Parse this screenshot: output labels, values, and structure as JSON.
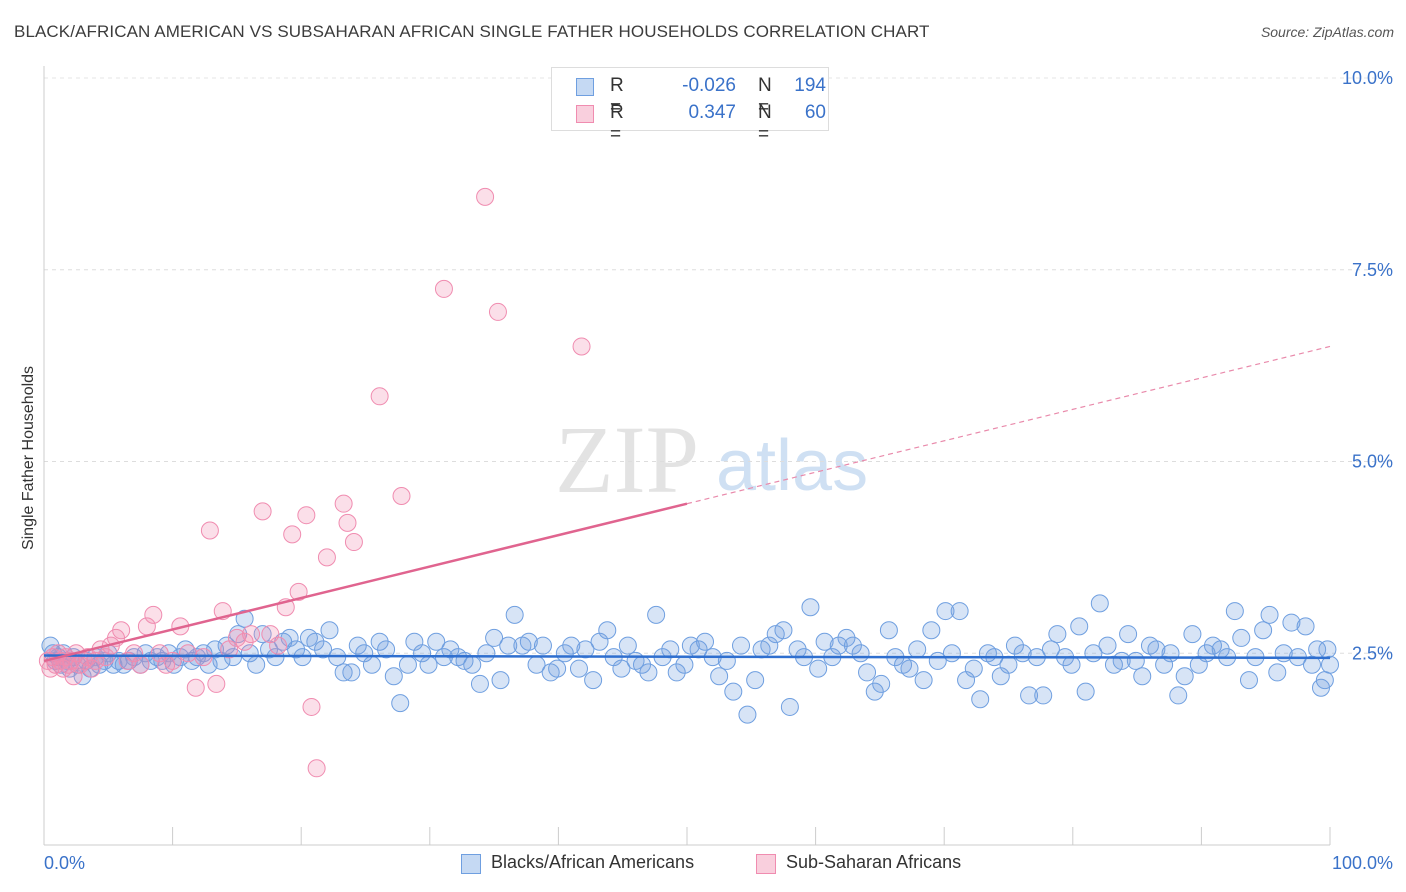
{
  "title": "BLACK/AFRICAN AMERICAN VS SUBSAHARAN AFRICAN SINGLE FATHER HOUSEHOLDS CORRELATION CHART",
  "source": "Source: ZipAtlas.com",
  "watermark": {
    "zip": "ZIP",
    "atlas": "atlas"
  },
  "legend": {
    "rows": [
      {
        "r_label": "R =",
        "r_value": "-0.026",
        "n_label": "N =",
        "n_value": "194",
        "color": "#6f9fe0"
      },
      {
        "r_label": "R =",
        "r_value": "0.347",
        "n_label": "N =",
        "n_value": "60",
        "color": "#f08cb0"
      }
    ]
  },
  "bottom_legend": [
    {
      "label": "Blacks/African Americans",
      "color": "#6f9fe0"
    },
    {
      "label": "Sub-Saharan Africans",
      "color": "#f08cb0"
    }
  ],
  "chart_data": {
    "type": "scatter",
    "title": "BLACK/AFRICAN AMERICAN VS SUBSAHARAN AFRICAN SINGLE FATHER HOUSEHOLDS CORRELATION CHART",
    "xlabel": "",
    "ylabel": "Single Father Households",
    "xlim": [
      0,
      100
    ],
    "ylim": [
      0,
      10
    ],
    "x_tick_labels": [
      "0.0%",
      "100.0%"
    ],
    "y_ticks": [
      2.5,
      5.0,
      7.5,
      10.0
    ],
    "y_tick_labels": [
      "2.5%",
      "5.0%",
      "7.5%",
      "10.0%"
    ],
    "grid": "horizontal dashed",
    "legend_position": "top-center",
    "series": [
      {
        "name": "Blacks/African Americans",
        "color": "#6f9fe0",
        "trend": {
          "x": [
            0,
            100
          ],
          "y": [
            2.47,
            2.44
          ]
        },
        "points": [
          [
            0.5,
            2.6
          ],
          [
            0.7,
            2.5
          ],
          [
            0.9,
            2.4
          ],
          [
            1.1,
            2.45
          ],
          [
            1.3,
            2.35
          ],
          [
            1.5,
            2.5
          ],
          [
            1.8,
            2.4
          ],
          [
            2.0,
            2.3
          ],
          [
            2.3,
            2.45
          ],
          [
            2.6,
            2.35
          ],
          [
            3.0,
            2.2
          ],
          [
            3.3,
            2.4
          ],
          [
            3.6,
            2.3
          ],
          [
            4.0,
            2.45
          ],
          [
            4.3,
            2.35
          ],
          [
            4.7,
            2.4
          ],
          [
            5.0,
            2.5
          ],
          [
            5.4,
            2.35
          ],
          [
            5.8,
            2.4
          ],
          [
            6.2,
            2.35
          ],
          [
            6.6,
            2.4
          ],
          [
            7.0,
            2.45
          ],
          [
            7.5,
            2.35
          ],
          [
            7.9,
            2.5
          ],
          [
            8.3,
            2.4
          ],
          [
            8.8,
            2.45
          ],
          [
            9.2,
            2.4
          ],
          [
            9.7,
            2.5
          ],
          [
            10.1,
            2.35
          ],
          [
            10.6,
            2.45
          ],
          [
            11.0,
            2.55
          ],
          [
            11.5,
            2.4
          ],
          [
            11.9,
            2.45
          ],
          [
            12.4,
            2.5
          ],
          [
            12.8,
            2.35
          ],
          [
            13.3,
            2.55
          ],
          [
            13.8,
            2.4
          ],
          [
            14.2,
            2.6
          ],
          [
            14.7,
            2.45
          ],
          [
            15.1,
            2.75
          ],
          [
            15.6,
            2.95
          ],
          [
            16.0,
            2.5
          ],
          [
            16.5,
            2.35
          ],
          [
            17.0,
            2.75
          ],
          [
            17.5,
            2.55
          ],
          [
            18.0,
            2.45
          ],
          [
            18.6,
            2.65
          ],
          [
            19.1,
            2.7
          ],
          [
            19.6,
            2.55
          ],
          [
            20.1,
            2.45
          ],
          [
            20.6,
            2.7
          ],
          [
            21.1,
            2.65
          ],
          [
            21.7,
            2.55
          ],
          [
            22.2,
            2.8
          ],
          [
            22.8,
            2.45
          ],
          [
            23.3,
            2.25
          ],
          [
            23.9,
            2.25
          ],
          [
            24.4,
            2.6
          ],
          [
            24.9,
            2.5
          ],
          [
            25.5,
            2.35
          ],
          [
            26.1,
            2.65
          ],
          [
            26.6,
            2.55
          ],
          [
            27.2,
            2.2
          ],
          [
            27.7,
            1.85
          ],
          [
            28.3,
            2.35
          ],
          [
            28.8,
            2.65
          ],
          [
            29.4,
            2.5
          ],
          [
            29.9,
            2.35
          ],
          [
            30.5,
            2.65
          ],
          [
            31.1,
            2.45
          ],
          [
            31.6,
            2.55
          ],
          [
            32.2,
            2.45
          ],
          [
            32.7,
            2.4
          ],
          [
            33.3,
            2.35
          ],
          [
            33.9,
            2.1
          ],
          [
            34.4,
            2.5
          ],
          [
            35.0,
            2.7
          ],
          [
            35.5,
            2.15
          ],
          [
            36.1,
            2.6
          ],
          [
            36.6,
            3.0
          ],
          [
            37.2,
            2.6
          ],
          [
            37.7,
            2.65
          ],
          [
            38.3,
            2.35
          ],
          [
            38.8,
            2.6
          ],
          [
            39.4,
            2.25
          ],
          [
            39.9,
            2.3
          ],
          [
            40.5,
            2.5
          ],
          [
            41.0,
            2.6
          ],
          [
            41.6,
            2.3
          ],
          [
            42.1,
            2.55
          ],
          [
            42.7,
            2.15
          ],
          [
            43.2,
            2.65
          ],
          [
            43.8,
            2.8
          ],
          [
            44.3,
            2.45
          ],
          [
            44.9,
            2.3
          ],
          [
            45.4,
            2.6
          ],
          [
            46.0,
            2.4
          ],
          [
            46.5,
            2.35
          ],
          [
            47.0,
            2.25
          ],
          [
            47.6,
            3.0
          ],
          [
            48.1,
            2.45
          ],
          [
            48.7,
            2.55
          ],
          [
            49.2,
            2.25
          ],
          [
            49.8,
            2.35
          ],
          [
            50.3,
            2.6
          ],
          [
            50.9,
            2.55
          ],
          [
            51.4,
            2.65
          ],
          [
            52.0,
            2.45
          ],
          [
            52.5,
            2.2
          ],
          [
            53.1,
            2.4
          ],
          [
            53.6,
            2.0
          ],
          [
            54.2,
            2.6
          ],
          [
            54.7,
            1.7
          ],
          [
            55.3,
            2.15
          ],
          [
            55.8,
            2.55
          ],
          [
            56.4,
            2.6
          ],
          [
            56.9,
            2.75
          ],
          [
            57.5,
            2.8
          ],
          [
            58.0,
            1.8
          ],
          [
            58.6,
            2.55
          ],
          [
            59.1,
            2.45
          ],
          [
            59.6,
            3.1
          ],
          [
            60.2,
            2.3
          ],
          [
            60.7,
            2.65
          ],
          [
            61.3,
            2.45
          ],
          [
            61.8,
            2.6
          ],
          [
            62.4,
            2.7
          ],
          [
            62.9,
            2.6
          ],
          [
            63.5,
            2.5
          ],
          [
            64.0,
            2.25
          ],
          [
            64.6,
            2.0
          ],
          [
            65.1,
            2.1
          ],
          [
            65.7,
            2.8
          ],
          [
            66.2,
            2.45
          ],
          [
            66.8,
            2.35
          ],
          [
            67.3,
            2.3
          ],
          [
            67.9,
            2.55
          ],
          [
            68.4,
            2.15
          ],
          [
            69.0,
            2.8
          ],
          [
            69.5,
            2.4
          ],
          [
            70.1,
            3.05
          ],
          [
            70.6,
            2.5
          ],
          [
            71.2,
            3.05
          ],
          [
            71.7,
            2.15
          ],
          [
            72.3,
            2.3
          ],
          [
            72.8,
            1.9
          ],
          [
            73.4,
            2.5
          ],
          [
            73.9,
            2.45
          ],
          [
            74.4,
            2.2
          ],
          [
            75.0,
            2.35
          ],
          [
            75.5,
            2.6
          ],
          [
            76.1,
            2.5
          ],
          [
            76.6,
            1.95
          ],
          [
            77.2,
            2.45
          ],
          [
            77.7,
            1.95
          ],
          [
            78.3,
            2.55
          ],
          [
            78.8,
            2.75
          ],
          [
            79.4,
            2.45
          ],
          [
            79.9,
            2.35
          ],
          [
            80.5,
            2.85
          ],
          [
            81.0,
            2.0
          ],
          [
            81.6,
            2.5
          ],
          [
            82.1,
            3.15
          ],
          [
            82.7,
            2.6
          ],
          [
            83.2,
            2.35
          ],
          [
            83.8,
            2.4
          ],
          [
            84.3,
            2.75
          ],
          [
            84.9,
            2.4
          ],
          [
            85.4,
            2.2
          ],
          [
            86.0,
            2.6
          ],
          [
            86.5,
            2.55
          ],
          [
            87.1,
            2.35
          ],
          [
            87.6,
            2.5
          ],
          [
            88.2,
            1.95
          ],
          [
            88.7,
            2.2
          ],
          [
            89.3,
            2.75
          ],
          [
            89.8,
            2.35
          ],
          [
            90.4,
            2.5
          ],
          [
            90.9,
            2.6
          ],
          [
            91.5,
            2.55
          ],
          [
            92.0,
            2.45
          ],
          [
            92.6,
            3.05
          ],
          [
            93.1,
            2.7
          ],
          [
            93.7,
            2.15
          ],
          [
            94.2,
            2.45
          ],
          [
            94.8,
            2.8
          ],
          [
            95.3,
            3.0
          ],
          [
            95.9,
            2.25
          ],
          [
            96.4,
            2.5
          ],
          [
            97.0,
            2.9
          ],
          [
            97.5,
            2.45
          ],
          [
            98.1,
            2.85
          ],
          [
            98.6,
            2.35
          ],
          [
            99.0,
            2.55
          ],
          [
            99.3,
            2.05
          ],
          [
            99.6,
            2.15
          ],
          [
            99.8,
            2.55
          ],
          [
            100.0,
            2.35
          ]
        ]
      },
      {
        "name": "Sub-Saharan Africans",
        "color": "#f08cb0",
        "trend": {
          "x": [
            0,
            50
          ],
          "y": [
            2.4,
            4.45
          ],
          "extended": {
            "x": [
              50,
              100
            ],
            "y": [
              4.45,
              6.5
            ]
          }
        },
        "points": [
          [
            0.3,
            2.4
          ],
          [
            0.5,
            2.3
          ],
          [
            0.7,
            2.45
          ],
          [
            0.9,
            2.35
          ],
          [
            1.1,
            2.5
          ],
          [
            1.3,
            2.4
          ],
          [
            1.5,
            2.3
          ],
          [
            1.7,
            2.45
          ],
          [
            1.9,
            2.35
          ],
          [
            2.1,
            2.4
          ],
          [
            2.3,
            2.2
          ],
          [
            2.5,
            2.5
          ],
          [
            2.8,
            2.35
          ],
          [
            3.1,
            2.4
          ],
          [
            3.4,
            2.45
          ],
          [
            3.7,
            2.3
          ],
          [
            4.0,
            2.4
          ],
          [
            4.4,
            2.55
          ],
          [
            4.8,
            2.45
          ],
          [
            5.2,
            2.6
          ],
          [
            5.6,
            2.7
          ],
          [
            6.0,
            2.8
          ],
          [
            6.5,
            2.4
          ],
          [
            7.0,
            2.5
          ],
          [
            7.5,
            2.35
          ],
          [
            8.0,
            2.85
          ],
          [
            8.5,
            3.0
          ],
          [
            9.0,
            2.5
          ],
          [
            9.5,
            2.35
          ],
          [
            10.0,
            2.4
          ],
          [
            10.6,
            2.85
          ],
          [
            11.2,
            2.5
          ],
          [
            11.8,
            2.05
          ],
          [
            12.4,
            2.45
          ],
          [
            12.9,
            4.1
          ],
          [
            13.4,
            2.1
          ],
          [
            13.9,
            3.05
          ],
          [
            14.4,
            2.55
          ],
          [
            15.0,
            2.7
          ],
          [
            15.6,
            2.65
          ],
          [
            16.1,
            2.75
          ],
          [
            17.0,
            4.35
          ],
          [
            17.6,
            2.75
          ],
          [
            18.2,
            2.6
          ],
          [
            18.8,
            3.1
          ],
          [
            19.3,
            4.05
          ],
          [
            19.8,
            3.3
          ],
          [
            20.4,
            4.3
          ],
          [
            20.8,
            1.8
          ],
          [
            21.2,
            1.0
          ],
          [
            22.0,
            3.75
          ],
          [
            23.3,
            4.45
          ],
          [
            23.6,
            4.2
          ],
          [
            24.1,
            3.95
          ],
          [
            26.1,
            5.85
          ],
          [
            27.8,
            4.55
          ],
          [
            31.1,
            7.25
          ],
          [
            34.3,
            8.45
          ],
          [
            35.3,
            6.95
          ],
          [
            41.8,
            6.5
          ]
        ]
      }
    ]
  }
}
